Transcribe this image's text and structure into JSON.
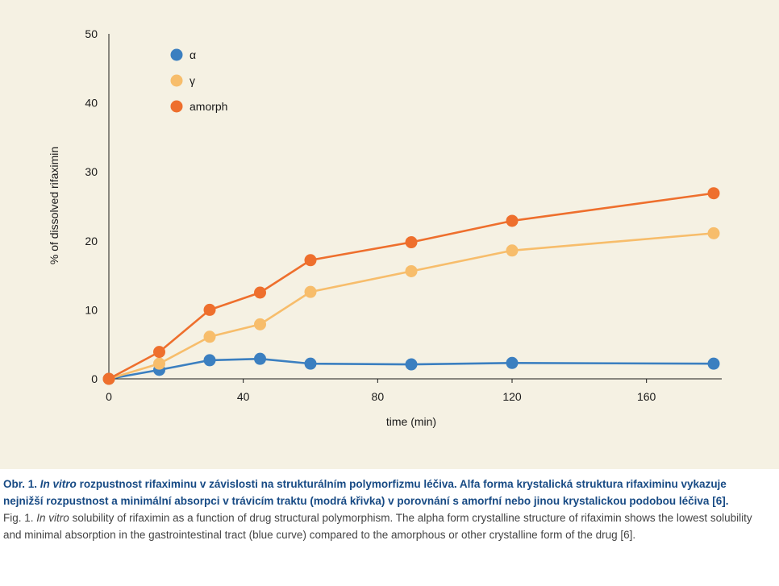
{
  "chart_data": {
    "type": "line",
    "title": "",
    "xlabel": "time (min)",
    "ylabel": "% of dissolved rifaximin",
    "xlim": [
      0,
      180
    ],
    "ylim": [
      0,
      50
    ],
    "xticks": [
      0,
      40,
      80,
      120,
      160
    ],
    "yticks": [
      0,
      10,
      20,
      30,
      40,
      50
    ],
    "grid": false,
    "legend_position": "top-left",
    "series": [
      {
        "name": "α",
        "color": "#3b7fc0",
        "x": [
          0,
          15,
          30,
          45,
          60,
          90,
          120,
          180
        ],
        "y": [
          0,
          1.3,
          2.7,
          2.9,
          2.2,
          2.1,
          2.3,
          2.2
        ]
      },
      {
        "name": "γ",
        "color": "#f7bd6b",
        "x": [
          0,
          15,
          30,
          45,
          60,
          90,
          120,
          180
        ],
        "y": [
          0,
          2.2,
          6.1,
          7.9,
          12.6,
          15.6,
          18.6,
          21.1
        ]
      },
      {
        "name": "amorph",
        "color": "#ee6f2d",
        "x": [
          0,
          15,
          30,
          45,
          60,
          90,
          120,
          180
        ],
        "y": [
          0,
          3.9,
          10.0,
          12.5,
          17.2,
          19.8,
          22.9,
          26.9
        ]
      }
    ]
  },
  "caption": {
    "cz_label": "Obr. 1.",
    "cz_italic": "In vitro",
    "cz_text": "rozpustnost rifaximinu v závislosti na strukturálním polymorfizmu léčiva. Alfa forma krystalická struktura rifaximinu vykazuje nejnižší rozpustnost a minimální absorpci v trávicím traktu (modrá křivka) v porovnání s amorfní nebo jinou krystalickou podobou léčiva [6].",
    "en_label": "Fig. 1.",
    "en_italic": "In vitro",
    "en_text": "solubility of rifaximin as a function of drug structural polymorphism. The alpha form crystalline structure of rifaximin shows the lowest solubility and minimal absorption in the gastrointestinal tract (blue curve) compared to the amorphous or other crystalline form of the drug [6]."
  }
}
